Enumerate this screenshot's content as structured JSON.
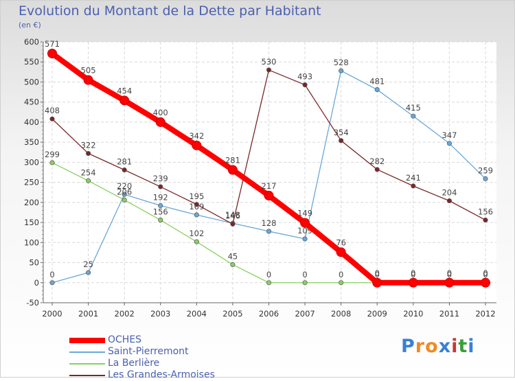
{
  "header": {
    "title": "Evolution du Montant de la Dette par Habitant",
    "unit": "(en €)"
  },
  "logo": {
    "text": "Proxiti",
    "colors": [
      "#3a7fd5",
      "#f08a24",
      "#f08a24",
      "#3a7fd5",
      "#cc3333",
      "#3a9f3a",
      "#3a7fd5"
    ]
  },
  "chart_data": {
    "type": "line",
    "x": [
      "2000",
      "2001",
      "2002",
      "2003",
      "2004",
      "2005",
      "2006",
      "2007",
      "2008",
      "2009",
      "2010",
      "2011",
      "2012"
    ],
    "ylim": [
      -50,
      600
    ],
    "yticks": [
      -50,
      0,
      50,
      100,
      150,
      200,
      250,
      300,
      350,
      400,
      450,
      500,
      550,
      600
    ],
    "grid": true,
    "legend": "bottom-left",
    "series": [
      {
        "name": "OCHES",
        "color": "#ff0000",
        "values": [
          571,
          505,
          454,
          400,
          342,
          281,
          217,
          149,
          76,
          0,
          0,
          0,
          0
        ],
        "labels": [
          "571",
          "505",
          "454",
          "400",
          "342",
          "281",
          "217",
          "149",
          "76",
          "0",
          "0",
          "0",
          "0"
        ]
      },
      {
        "name": "Saint-Pierremont",
        "color": "#6aa7d6",
        "values": [
          0,
          25,
          220,
          192,
          169,
          148,
          128,
          109,
          528,
          481,
          415,
          347,
          259
        ],
        "labels": [
          "0",
          "25",
          "220",
          "192",
          "169",
          "148",
          "128",
          "109",
          "528",
          "481",
          "415",
          "347",
          "259"
        ]
      },
      {
        "name": "La Berlière",
        "color": "#88d060",
        "values": [
          299,
          254,
          206,
          156,
          102,
          45,
          0,
          0,
          0,
          0,
          0,
          0,
          0
        ],
        "labels": [
          "299",
          "254",
          "206",
          "156",
          "102",
          "45",
          "0",
          "0",
          "0",
          "0",
          "0",
          "0",
          "0"
        ]
      },
      {
        "name": "Les Grandes-Armoises",
        "color": "#7a2626",
        "values": [
          408,
          322,
          281,
          239,
          195,
          146,
          530,
          493,
          354,
          282,
          241,
          204,
          156
        ],
        "labels": [
          "408",
          "322",
          "281",
          "239",
          "195",
          "146",
          "530",
          "493",
          "354",
          "282",
          "241",
          "204",
          "156"
        ]
      }
    ]
  }
}
